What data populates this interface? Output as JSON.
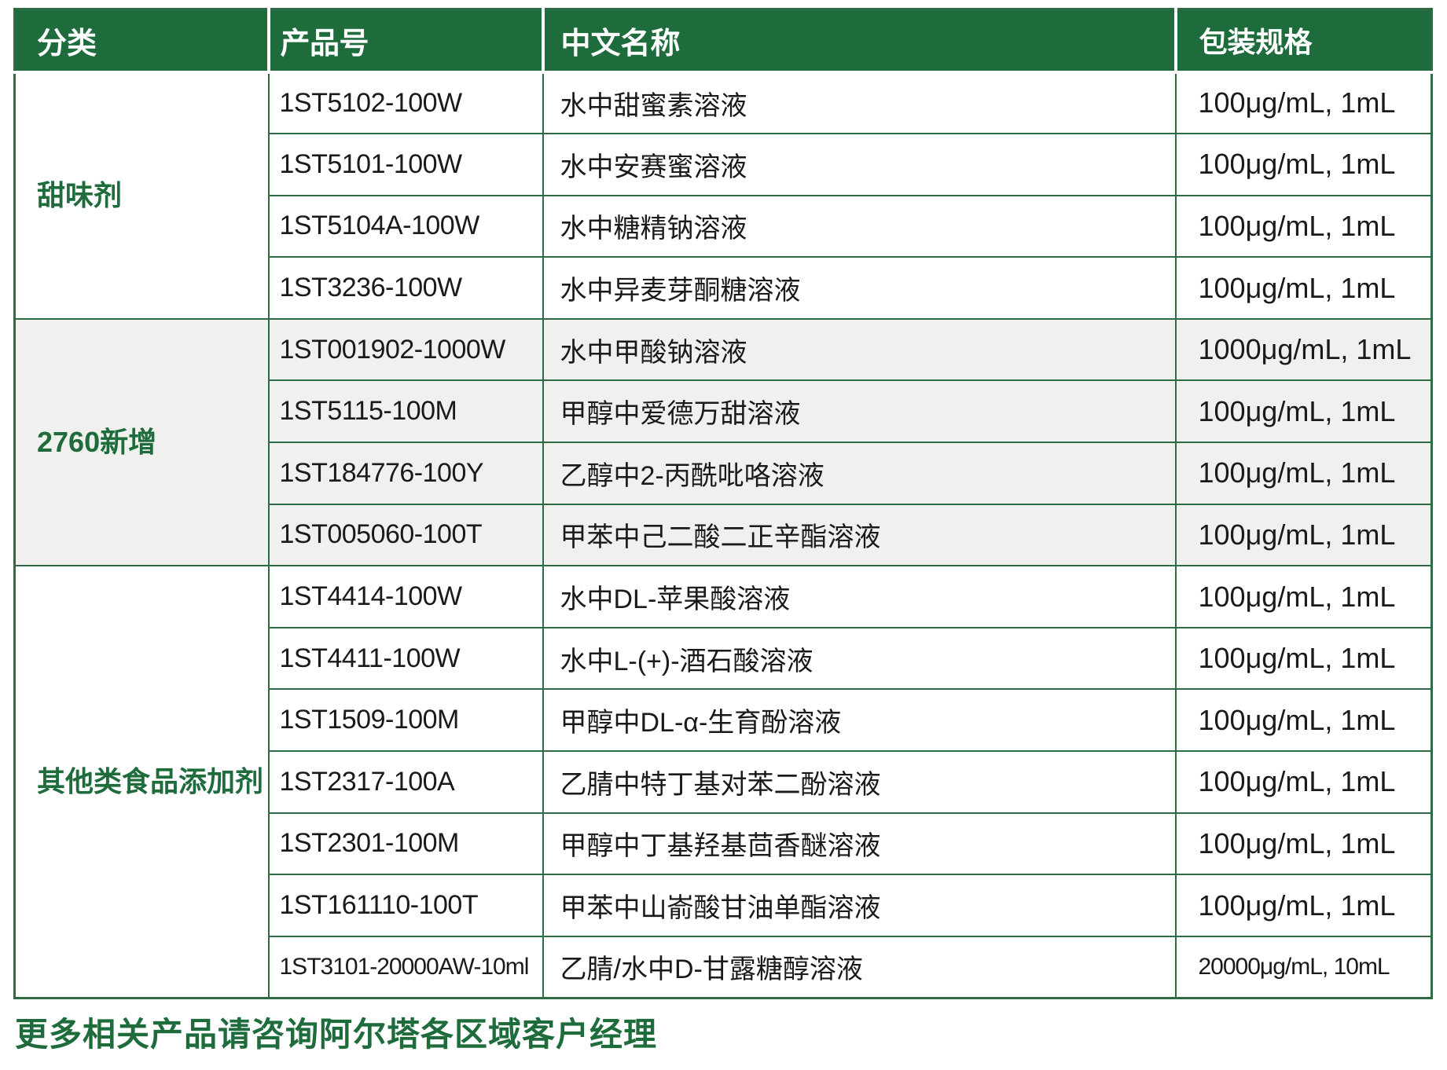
{
  "colors": {
    "header_green": "#1e6b3c",
    "border_green": "#2e6b45",
    "stripe_gray": "#f0f0ef",
    "text_dark": "#1a1a1a"
  },
  "table": {
    "columns": [
      "分类",
      "产品号",
      "中文名称",
      "包装规格"
    ],
    "groups": [
      {
        "category": "甜味剂",
        "striped": false,
        "rows": [
          [
            "1ST5102-100W",
            "水中甜蜜素溶液",
            "100μg/mL, 1mL"
          ],
          [
            "1ST5101-100W",
            "水中安赛蜜溶液",
            "100μg/mL, 1mL"
          ],
          [
            "1ST5104A-100W",
            "水中糖精钠溶液",
            "100μg/mL, 1mL"
          ],
          [
            "1ST3236-100W",
            "水中异麦芽酮糖溶液",
            "100μg/mL, 1mL"
          ]
        ]
      },
      {
        "category": "2760新增",
        "striped": true,
        "rows": [
          [
            "1ST001902-1000W",
            "水中甲酸钠溶液",
            "1000μg/mL, 1mL"
          ],
          [
            "1ST5115-100M",
            "甲醇中爱德万甜溶液",
            "100μg/mL, 1mL"
          ],
          [
            "1ST184776-100Y",
            "乙醇中2-丙酰吡咯溶液",
            "100μg/mL, 1mL"
          ],
          [
            "1ST005060-100T",
            "甲苯中己二酸二正辛酯溶液",
            "100μg/mL, 1mL"
          ]
        ]
      },
      {
        "category": "其他类食品添加剂",
        "striped": false,
        "rows": [
          [
            "1ST4414-100W",
            "水中DL-苹果酸溶液",
            "100μg/mL, 1mL"
          ],
          [
            "1ST4411-100W",
            "水中L-(+)-酒石酸溶液",
            "100μg/mL, 1mL"
          ],
          [
            "1ST1509-100M",
            "甲醇中DL-α-生育酚溶液",
            "100μg/mL, 1mL"
          ],
          [
            "1ST2317-100A",
            "乙腈中特丁基对苯二酚溶液",
            "100μg/mL, 1mL"
          ],
          [
            "1ST2301-100M",
            "甲醇中丁基羟基茴香醚溶液",
            "100μg/mL, 1mL"
          ],
          [
            "1ST161110-100T",
            "甲苯中山嵛酸甘油单酯溶液",
            "100μg/mL, 1mL"
          ],
          [
            "1ST3101-20000AW-10ml",
            "乙腈/水中D-甘露糖醇溶液",
            "20000μg/mL, 10mL"
          ]
        ]
      }
    ]
  },
  "footer": {
    "note": "更多相关产品请咨询阿尔塔各区域客户经理"
  }
}
